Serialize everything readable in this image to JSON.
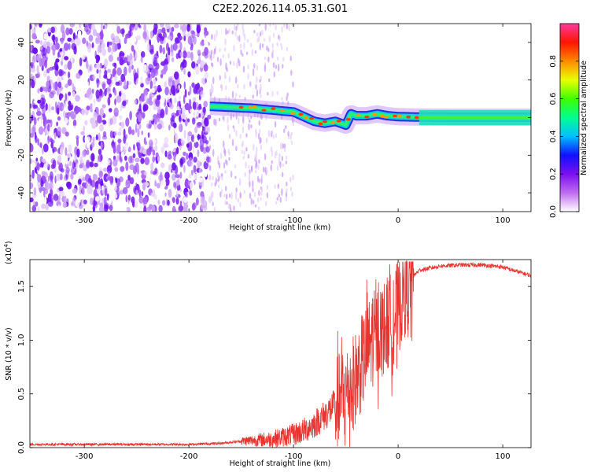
{
  "title": "C2E2.2026.114.05.31.G01",
  "chart_data": [
    {
      "type": "heatmap",
      "name": "spectrogram",
      "xlabel": "Height of straight line (km)",
      "ylabel": "Frequency (Hz)",
      "xlim": [
        -352,
        127
      ],
      "ylim": [
        -50,
        50
      ],
      "xticks": [
        -300,
        -200,
        -100,
        0,
        100
      ],
      "yticks": [
        -40,
        -20,
        0,
        20,
        40
      ],
      "xtick_labels": [
        "-300",
        "-200",
        "-100",
        "0",
        "100"
      ],
      "ytick_labels": [
        "-40",
        "-20",
        "0",
        "20",
        "40"
      ],
      "noise_region_height_km": [
        -352,
        -180
      ],
      "signal_track": {
        "height_km": [
          -180,
          -160,
          -140,
          -120,
          -100,
          -90,
          -80,
          -70,
          -60,
          -50,
          -45,
          -40,
          -30,
          -20,
          -10,
          0,
          20,
          60,
          127
        ],
        "frequency_hz": [
          6,
          5.5,
          5,
          4,
          3,
          0.5,
          -2,
          -3,
          -2,
          -4,
          2,
          1,
          1,
          2,
          1,
          0.5,
          0.3,
          0.2,
          0.2
        ]
      }
    },
    {
      "type": "line",
      "name": "snr",
      "xlabel": "Height of straight line (km)",
      "ylabel": "SNR (10 * v/v)",
      "multiplier_label": "(x10",
      "multiplier_exponent": "4",
      "xlim": [
        -352,
        127
      ],
      "ylim": [
        0,
        1.75
      ],
      "xticks": [
        -300,
        -200,
        -100,
        0,
        100
      ],
      "yticks": [
        0.0,
        0.5,
        1.0,
        1.5
      ],
      "xtick_labels": [
        "-300",
        "-200",
        "-100",
        "0",
        "100"
      ],
      "ytick_labels": [
        "0.0",
        "0.5",
        "1.0",
        "1.5"
      ],
      "color": "#e8332e",
      "series": [
        {
          "name": "SNR",
          "x": [
            -352,
            -300,
            -250,
            -200,
            -170,
            -150,
            -120,
            -100,
            -90,
            -80,
            -70,
            -60,
            -50,
            -40,
            -35,
            -30,
            -25,
            -20,
            -15,
            -10,
            -5,
            0,
            5,
            10,
            20,
            40,
            60,
            80,
            100,
            110,
            127
          ],
          "y": [
            0.03,
            0.03,
            0.03,
            0.03,
            0.04,
            0.06,
            0.08,
            0.12,
            0.16,
            0.22,
            0.3,
            0.4,
            0.5,
            0.65,
            0.78,
            0.9,
            1.0,
            1.05,
            1.1,
            1.15,
            1.2,
            1.3,
            1.45,
            1.55,
            1.65,
            1.69,
            1.7,
            1.7,
            1.68,
            1.65,
            1.6
          ]
        }
      ]
    }
  ],
  "colorbar": {
    "label": "Normalized spectral amplitude",
    "range": [
      0,
      1
    ],
    "ticks": [
      0.0,
      0.2,
      0.4,
      0.6,
      0.8
    ],
    "tick_labels": [
      "0.0",
      "0.2",
      "0.4",
      "0.6",
      "0.8"
    ],
    "colors": [
      "#ffffff",
      "#c06cf0",
      "#7a10f0",
      "#1010ff",
      "#00bfff",
      "#00ff90",
      "#40ff00",
      "#e8ff00",
      "#ff8a00",
      "#ff1500",
      "#ff3aa0"
    ]
  }
}
